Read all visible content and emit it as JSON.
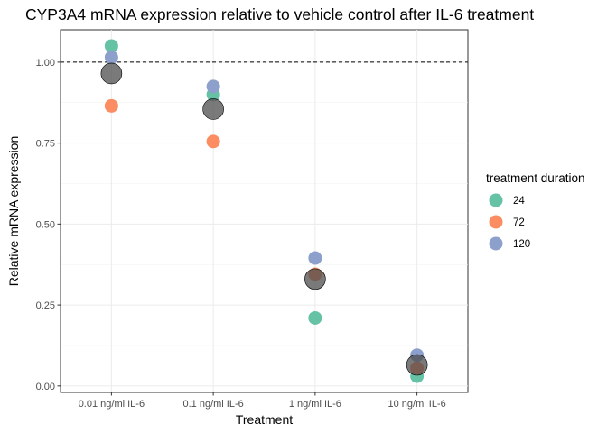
{
  "chart_data": {
    "type": "scatter",
    "title": "CYP3A4 mRNA expression relative to vehicle control after IL-6 treatment",
    "xlabel": "Treatment",
    "ylabel": "Relative mRNA expression",
    "categories": [
      "0.01 ng/ml IL-6",
      "0.1 ng/ml IL-6",
      "1 ng/ml IL-6",
      "10 ng/ml IL-6"
    ],
    "ylim": [
      -0.02,
      1.1
    ],
    "yticks": [
      0.0,
      0.25,
      0.5,
      0.75,
      1.0
    ],
    "ytick_labels": [
      "0.00",
      "0.25",
      "0.50",
      "0.75",
      "1.00"
    ],
    "reference_line": {
      "y": 1.0,
      "style": "dashed"
    },
    "grid": true,
    "legend": {
      "title": "treatment duration",
      "position": "right"
    },
    "series": [
      {
        "name": "24",
        "color": "#66c2a5",
        "values": [
          1.05,
          0.9,
          0.21,
          0.03
        ]
      },
      {
        "name": "72",
        "color": "#fc8d62",
        "values": [
          0.865,
          0.755,
          0.345,
          0.055
        ]
      },
      {
        "name": "120",
        "color": "#8da0cb",
        "values": [
          1.015,
          0.925,
          0.395,
          0.095
        ]
      }
    ],
    "mean_series": {
      "color": "#4d4d4d",
      "values": [
        0.965,
        0.855,
        0.33,
        0.065
      ]
    }
  }
}
